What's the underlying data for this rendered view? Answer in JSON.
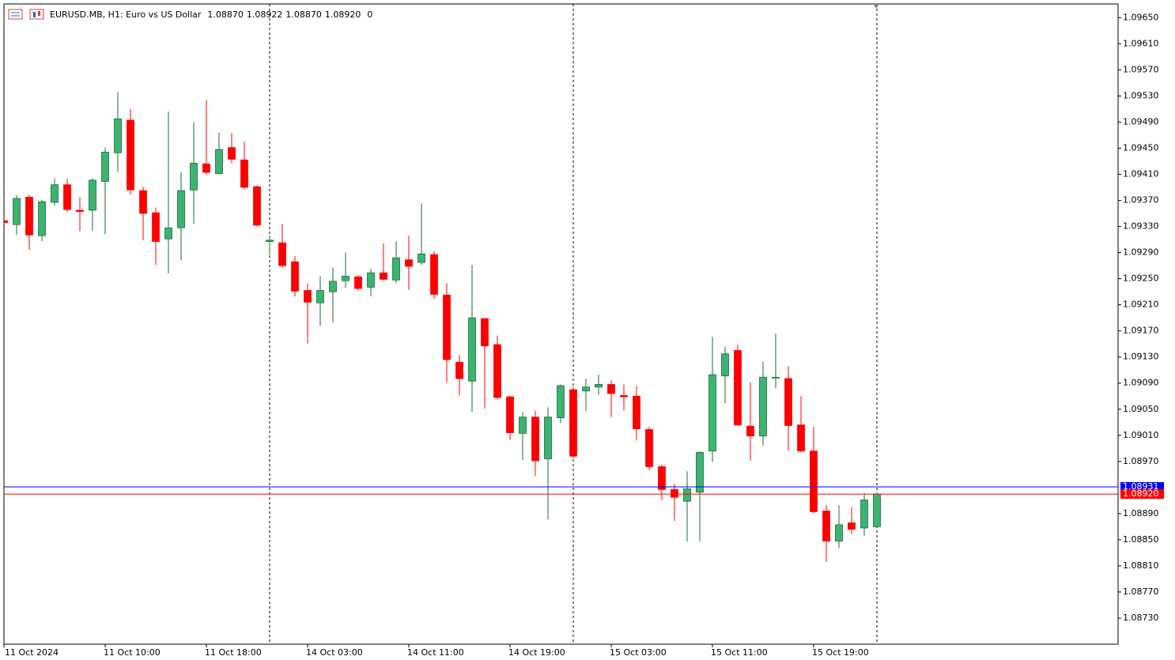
{
  "chart_data": {
    "type": "candlestick",
    "title": "EURUSD.MB, H1:  Euro vs US Dollar",
    "info": [
      "1.08870",
      "1.08922",
      "1.08870",
      "1.08920",
      "0"
    ],
    "up_color": "#3cb371",
    "down_color": "#ff0000",
    "categories": [
      "11 Oct 2024",
      null,
      null,
      null,
      null,
      null,
      null,
      null,
      "11 Oct 10:00",
      null,
      null,
      null,
      null,
      null,
      null,
      null,
      "11 Oct 18:00",
      null,
      null,
      null,
      null,
      null,
      null,
      null,
      "14 Oct 03:00",
      null,
      null,
      null,
      null,
      null,
      null,
      null,
      "14 Oct 11:00",
      null,
      null,
      null,
      null,
      null,
      null,
      null,
      "14 Oct 19:00",
      null,
      null,
      null,
      null,
      null,
      null,
      null,
      "15 Oct 03:00",
      null,
      null,
      null,
      null,
      null,
      null,
      null,
      "15 Oct 11:00",
      null,
      null,
      null,
      null,
      null,
      null,
      null,
      "15 Oct 19:00",
      null,
      null,
      null,
      null,
      null
    ],
    "open": [
      1.09339,
      1.09333,
      1.09375,
      1.09316,
      1.09367,
      1.09394,
      1.09355,
      1.09355,
      1.09399,
      1.09443,
      1.09493,
      1.09385,
      1.09351,
      1.09311,
      1.09328,
      1.09386,
      1.09426,
      1.09411,
      1.09451,
      1.09432,
      1.09391,
      1.09307,
      1.09305,
      1.09276,
      1.09232,
      1.09213,
      1.0923,
      1.09247,
      1.09253,
      1.09237,
      1.09259,
      1.09248,
      1.09279,
      1.09275,
      1.09287,
      1.09225,
      1.09122,
      1.09093,
      1.09189,
      1.09149,
      1.09069,
      1.09013,
      1.09038,
      1.08974,
      1.09037,
      1.0908,
      1.09078,
      1.09084,
      1.09088,
      1.09071,
      1.0907,
      1.09019,
      1.08962,
      1.08927,
      1.08909,
      1.08923,
      1.08986,
      1.09101,
      1.0914,
      1.09024,
      1.09009,
      1.09098,
      1.09097,
      1.09026,
      1.08986,
      1.08894,
      1.08848,
      1.08876,
      1.08868,
      1.0887
    ],
    "high": [
      1.0934,
      1.09378,
      1.09378,
      1.09371,
      1.09404,
      1.09403,
      1.09375,
      1.09404,
      1.09451,
      1.09536,
      1.0951,
      1.09391,
      1.09359,
      1.09506,
      1.09413,
      1.0949,
      1.09524,
      1.09474,
      1.09473,
      1.0946,
      1.09393,
      1.09316,
      1.09334,
      1.09285,
      1.09243,
      1.09254,
      1.09267,
      1.0929,
      1.09255,
      1.09265,
      1.09304,
      1.09307,
      1.09316,
      1.09365,
      1.09292,
      1.09243,
      1.09133,
      1.09271,
      1.09189,
      1.09163,
      1.09071,
      1.09046,
      1.09048,
      1.09053,
      1.09088,
      1.09084,
      1.09097,
      1.09103,
      1.09094,
      1.09088,
      1.09086,
      1.09023,
      1.08965,
      1.08936,
      1.08955,
      1.08985,
      1.09161,
      1.09146,
      1.09149,
      1.09091,
      1.09123,
      1.09166,
      1.09116,
      1.0907,
      1.09023,
      1.08903,
      1.08903,
      1.089,
      1.08921,
      1.08922
    ],
    "low": [
      1.09334,
      1.09317,
      1.09294,
      1.09307,
      1.09362,
      1.09352,
      1.09323,
      1.09323,
      1.09318,
      1.09414,
      1.09379,
      1.09309,
      1.09271,
      1.09258,
      1.09278,
      1.09334,
      1.09409,
      1.0941,
      1.09427,
      1.09387,
      1.0933,
      1.09287,
      1.09267,
      1.09223,
      1.09151,
      1.09178,
      1.09183,
      1.09236,
      1.09232,
      1.09223,
      1.09247,
      1.09243,
      1.09233,
      1.09271,
      1.09219,
      1.09091,
      1.09071,
      1.09046,
      1.09051,
      1.09065,
      1.09003,
      1.08972,
      1.08948,
      1.08881,
      1.09029,
      1.08975,
      1.09047,
      1.09072,
      1.09038,
      1.09048,
      1.09002,
      1.08957,
      1.08911,
      1.08879,
      1.08847,
      1.08848,
      1.08969,
      1.09059,
      1.09024,
      1.08971,
      1.08994,
      1.09082,
      1.08986,
      1.08984,
      1.08891,
      1.08816,
      1.08837,
      1.08859,
      1.08856,
      1.0887
    ],
    "close": [
      1.09336,
      1.09373,
      1.09317,
      1.09368,
      1.09394,
      1.09356,
      1.09353,
      1.09401,
      1.09444,
      1.09495,
      1.09386,
      1.0935,
      1.09307,
      1.09328,
      1.09385,
      1.09427,
      1.09413,
      1.09448,
      1.09433,
      1.0939,
      1.09332,
      1.09309,
      1.0927,
      1.09231,
      1.09214,
      1.09232,
      1.09246,
      1.09254,
      1.09235,
      1.09259,
      1.09249,
      1.09282,
      1.09269,
      1.09288,
      1.09226,
      1.09126,
      1.09097,
      1.0919,
      1.09147,
      1.09068,
      1.09014,
      1.09038,
      1.08971,
      1.09038,
      1.09086,
      1.08978,
      1.09084,
      1.09088,
      1.09074,
      1.09069,
      1.0902,
      1.08962,
      1.08927,
      1.08915,
      1.08928,
      1.08984,
      1.09103,
      1.09135,
      1.09026,
      1.09009,
      1.09099,
      1.09099,
      1.09025,
      1.08986,
      1.08893,
      1.08848,
      1.08873,
      1.08866,
      1.08911,
      1.0892
    ],
    "ylim": [
      1.0869,
      1.09671
    ],
    "yticks": [
      {
        "value": 1.0965,
        "label": "1.09650"
      },
      {
        "value": 1.0961,
        "label": "1.09610"
      },
      {
        "value": 1.0957,
        "label": "1.09570"
      },
      {
        "value": 1.0953,
        "label": "1.09530"
      },
      {
        "value": 1.0949,
        "label": "1.09490"
      },
      {
        "value": 1.0945,
        "label": "1.09450"
      },
      {
        "value": 1.0941,
        "label": "1.09410"
      },
      {
        "value": 1.0937,
        "label": "1.09370"
      },
      {
        "value": 1.0933,
        "label": "1.09330"
      },
      {
        "value": 1.0929,
        "label": "1.09290"
      },
      {
        "value": 1.0925,
        "label": "1.09250"
      },
      {
        "value": 1.0921,
        "label": "1.09210"
      },
      {
        "value": 1.0917,
        "label": "1.09170"
      },
      {
        "value": 1.0913,
        "label": "1.09130"
      },
      {
        "value": 1.0909,
        "label": "1.09090"
      },
      {
        "value": 1.0905,
        "label": "1.09050"
      },
      {
        "value": 1.0901,
        "label": "1.09010"
      },
      {
        "value": 1.0897,
        "label": "1.08970"
      },
      {
        "value": 1.0889,
        "label": "1.08890"
      },
      {
        "value": 1.0885,
        "label": "1.08850"
      },
      {
        "value": 1.0881,
        "label": "1.08810"
      },
      {
        "value": 1.0877,
        "label": "1.08770"
      },
      {
        "value": 1.0873,
        "label": "1.08730"
      }
    ],
    "ask_line": {
      "value": 1.08931,
      "label": "1.08931",
      "color": "#0000ff"
    },
    "bid_line": {
      "value": 1.0892,
      "label": "1.08920",
      "color": "#ff0000"
    }
  }
}
